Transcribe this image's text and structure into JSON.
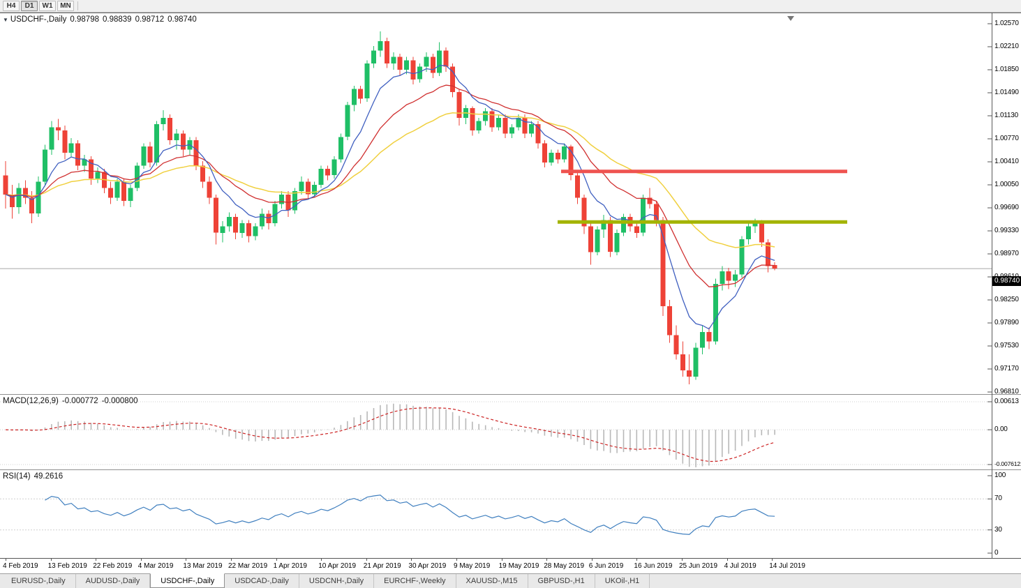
{
  "toolbar": {
    "timeframes": [
      {
        "label": "H4",
        "active": false
      },
      {
        "label": "D1",
        "active": true
      },
      {
        "label": "W1",
        "active": false
      },
      {
        "label": "MN",
        "active": false
      }
    ]
  },
  "chart": {
    "title": {
      "symbol": "USDCHF-,Daily",
      "open": "0.98798",
      "high": "0.98839",
      "low": "0.98712",
      "close": "0.98740"
    },
    "current_price_label": "0.98740",
    "price_scale_labels": [
      "1.02570",
      "1.02210",
      "1.01850",
      "1.01490",
      "1.01130",
      "1.00770",
      "1.00410",
      "1.00050",
      "0.99690",
      "0.99330",
      "0.98970",
      "0.98610",
      "0.98250",
      "0.97890",
      "0.97530",
      "0.97170",
      "0.96810"
    ],
    "date_labels": [
      "4 Feb 2019",
      "13 Feb 2019",
      "22 Feb 2019",
      "4 Mar 2019",
      "13 Mar 2019",
      "22 Mar 2019",
      "1 Apr 2019",
      "10 Apr 2019",
      "21 Apr 2019",
      "30 Apr 2019",
      "9 May 2019",
      "19 May 2019",
      "28 May 2019",
      "6 Jun 2019",
      "16 Jun 2019",
      "25 Jun 2019",
      "4 Jul 2019",
      "14 Jul 2019"
    ],
    "colors": {
      "up": "#1fbf66",
      "down": "#ee4237",
      "ma_fast": "#4060c0",
      "ma_mid": "#d03030",
      "ma_slow": "#f0d040",
      "rsi_line": "#3f7fbf",
      "macd_hist": "#b8b8b8",
      "macd_signal": "#cc2222",
      "hline_red": "#ef5350",
      "hline_olive": "#a3b400",
      "bid_line": "#a8a8a8",
      "grid_dotted": "#cfcfcf"
    }
  },
  "macd": {
    "label": "MACD(12,26,9)",
    "value1": "-0.000772",
    "value2": "-0.000800",
    "scale": [
      "0.00613",
      "0.00",
      "-0.0076121"
    ]
  },
  "rsi": {
    "label": "RSI(14)",
    "value": "49.2616",
    "scale": [
      "100",
      "70",
      "30",
      "0"
    ]
  },
  "tabs": [
    {
      "label": "EURUSD-,Daily",
      "active": false
    },
    {
      "label": "AUDUSD-,Daily",
      "active": false
    },
    {
      "label": "USDCHF-,Daily",
      "active": true
    },
    {
      "label": "USDCAD-,Daily",
      "active": false
    },
    {
      "label": "USDCNH-,Daily",
      "active": false
    },
    {
      "label": "EURCHF-,Weekly",
      "active": false
    },
    {
      "label": "XAUUSD-,M15",
      "active": false
    },
    {
      "label": "GBPUSD-,H1",
      "active": false
    },
    {
      "label": "UKOil-,H1",
      "active": false
    }
  ],
  "chart_data": {
    "type": "candlestick",
    "symbol": "USDCHF",
    "timeframe": "Daily",
    "price_axis": {
      "max": 1.0257,
      "min": 0.9681,
      "step": 0.0036
    },
    "x_range": [
      "4 Feb 2019",
      "17 Jul 2019"
    ],
    "ohlc": [
      [
        1.002,
        1.0042,
        0.9968,
        0.999
      ],
      [
        0.999,
        1.0005,
        0.9952,
        0.997
      ],
      [
        0.997,
        1.0008,
        0.996,
        1.0
      ],
      [
        1.0,
        1.0012,
        0.9975,
        0.9985
      ],
      [
        0.9985,
        0.9995,
        0.9945,
        0.996
      ],
      [
        0.996,
        1.0018,
        0.9955,
        1.001
      ],
      [
        1.001,
        1.0068,
        1.0005,
        1.006
      ],
      [
        1.006,
        1.0105,
        1.0052,
        1.0095
      ],
      [
        1.0095,
        1.0108,
        1.0075,
        1.009
      ],
      [
        1.009,
        1.0098,
        1.0045,
        1.0055
      ],
      [
        1.0055,
        1.0078,
        1.0048,
        1.007
      ],
      [
        1.007,
        1.0075,
        1.0028,
        1.0035
      ],
      [
        1.0035,
        1.0052,
        1.0025,
        1.0045
      ],
      [
        1.0045,
        1.005,
        1.0005,
        1.0015
      ],
      [
        1.0015,
        1.0032,
        1.0008,
        1.0025
      ],
      [
        1.0025,
        1.003,
        0.9992,
        1.0
      ],
      [
        1.0,
        1.001,
        0.9975,
        0.9985
      ],
      [
        0.9985,
        1.0015,
        0.998,
        1.001
      ],
      [
        1.001,
        1.0015,
        0.9972,
        0.998
      ],
      [
        0.998,
        1.0005,
        0.997,
        1.0
      ],
      [
        1.0,
        1.004,
        0.9995,
        1.0035
      ],
      [
        1.0035,
        1.007,
        1.003,
        1.0065
      ],
      [
        1.0065,
        1.0072,
        1.0032,
        1.004
      ],
      [
        1.004,
        1.0105,
        1.0035,
        1.01
      ],
      [
        1.01,
        1.0122,
        1.009,
        1.011
      ],
      [
        1.011,
        1.0115,
        1.0068,
        1.0075
      ],
      [
        1.0075,
        1.0092,
        1.006,
        1.0085
      ],
      [
        1.0085,
        1.009,
        1.005,
        1.006
      ],
      [
        1.006,
        1.008,
        1.0052,
        1.0075
      ],
      [
        1.0075,
        1.008,
        1.0028,
        1.0035
      ],
      [
        1.0035,
        1.0042,
        1.0,
        1.001
      ],
      [
        1.001,
        1.0018,
        0.9975,
        0.9985
      ],
      [
        0.9985,
        0.999,
        0.9912,
        0.993
      ],
      [
        0.993,
        0.9948,
        0.9915,
        0.994
      ],
      [
        0.994,
        0.9962,
        0.9932,
        0.9955
      ],
      [
        0.9955,
        0.996,
        0.992,
        0.993
      ],
      [
        0.993,
        0.995,
        0.9922,
        0.9945
      ],
      [
        0.9945,
        0.995,
        0.9915,
        0.9925
      ],
      [
        0.9925,
        0.9945,
        0.9918,
        0.994
      ],
      [
        0.994,
        0.9968,
        0.9935,
        0.996
      ],
      [
        0.996,
        0.9965,
        0.9935,
        0.9945
      ],
      [
        0.9945,
        0.998,
        0.994,
        0.9975
      ],
      [
        0.9975,
        0.9995,
        0.9968,
        0.999
      ],
      [
        0.999,
        0.9995,
        0.9955,
        0.9965
      ],
      [
        0.9965,
        1.0,
        0.996,
        0.9995
      ],
      [
        0.9995,
        1.0018,
        0.999,
        1.001
      ],
      [
        1.001,
        1.0015,
        0.9982,
        0.999
      ],
      [
        0.999,
        1.001,
        0.9985,
        1.0005
      ],
      [
        1.0005,
        1.0035,
        1.0,
        1.003
      ],
      [
        1.003,
        1.0035,
        1.0012,
        1.002
      ],
      [
        1.002,
        1.005,
        1.0015,
        1.0045
      ],
      [
        1.0045,
        1.0085,
        1.004,
        1.008
      ],
      [
        1.008,
        1.0135,
        1.0075,
        1.013
      ],
      [
        1.013,
        1.016,
        1.012,
        1.0155
      ],
      [
        1.0155,
        1.016,
        1.0132,
        1.014
      ],
      [
        1.014,
        1.02,
        1.0135,
        1.0195
      ],
      [
        1.0195,
        1.0222,
        1.0188,
        1.0215
      ],
      [
        1.0215,
        1.0245,
        1.0205,
        1.023
      ],
      [
        1.023,
        1.0235,
        1.0188,
        1.0195
      ],
      [
        1.0195,
        1.0212,
        1.0185,
        1.0205
      ],
      [
        1.0205,
        1.021,
        1.0175,
        1.0185
      ],
      [
        1.0185,
        1.0205,
        1.0178,
        1.02
      ],
      [
        1.02,
        1.0205,
        1.0162,
        1.017
      ],
      [
        1.017,
        1.0195,
        1.0165,
        1.019
      ],
      [
        1.019,
        1.0212,
        1.0182,
        1.0205
      ],
      [
        1.0205,
        1.021,
        1.0172,
        1.018
      ],
      [
        1.018,
        1.0228,
        1.0175,
        1.0215
      ],
      [
        1.0215,
        1.022,
        1.0182,
        1.019
      ],
      [
        1.019,
        1.0195,
        1.0142,
        1.015
      ],
      [
        1.015,
        1.0155,
        1.0098,
        1.011
      ],
      [
        1.011,
        1.013,
        1.01,
        1.0125
      ],
      [
        1.0125,
        1.0128,
        1.0082,
        1.009
      ],
      [
        1.009,
        1.011,
        1.0085,
        1.0105
      ],
      [
        1.0105,
        1.0125,
        1.0098,
        1.012
      ],
      [
        1.012,
        1.0125,
        1.0088,
        1.0095
      ],
      [
        1.0095,
        1.0115,
        1.009,
        1.011
      ],
      [
        1.011,
        1.0115,
        1.0078,
        1.0085
      ],
      [
        1.0085,
        1.01,
        1.0078,
        1.0095
      ],
      [
        1.0095,
        1.0115,
        1.009,
        1.011
      ],
      [
        1.011,
        1.0115,
        1.0078,
        1.0085
      ],
      [
        1.0085,
        1.0105,
        1.008,
        1.01
      ],
      [
        1.01,
        1.0105,
        1.0062,
        1.007
      ],
      [
        1.007,
        1.0075,
        1.0032,
        1.004
      ],
      [
        1.004,
        1.006,
        1.0035,
        1.0055
      ],
      [
        1.0055,
        1.006,
        1.0038,
        1.0045
      ],
      [
        1.0045,
        1.007,
        1.004,
        1.0065
      ],
      [
        1.0065,
        1.0068,
        1.0012,
        1.002
      ],
      [
        1.002,
        1.0025,
        0.9975,
        0.9985
      ],
      [
        0.9985,
        0.999,
        0.9928,
        0.994
      ],
      [
        0.994,
        0.9945,
        0.988,
        0.99
      ],
      [
        0.99,
        0.994,
        0.9895,
        0.9935
      ],
      [
        0.9935,
        0.9958,
        0.9922,
        0.995
      ],
      [
        0.995,
        0.9955,
        0.9892,
        0.99
      ],
      [
        0.99,
        0.9935,
        0.9895,
        0.993
      ],
      [
        0.993,
        0.996,
        0.9925,
        0.9955
      ],
      [
        0.9955,
        0.996,
        0.9932,
        0.994
      ],
      [
        0.994,
        0.9948,
        0.9922,
        0.993
      ],
      [
        0.993,
        0.999,
        0.9925,
        0.9985
      ],
      [
        0.9985,
        1.0,
        0.9968,
        0.9975
      ],
      [
        0.9975,
        0.998,
        0.994,
        0.995
      ],
      [
        0.995,
        0.9955,
        0.98,
        0.9815
      ],
      [
        0.9815,
        0.9825,
        0.9758,
        0.977
      ],
      [
        0.977,
        0.9785,
        0.9732,
        0.974
      ],
      [
        0.974,
        0.976,
        0.9705,
        0.9715
      ],
      [
        0.9715,
        0.974,
        0.9693,
        0.9705
      ],
      [
        0.9705,
        0.9758,
        0.97,
        0.975
      ],
      [
        0.975,
        0.9785,
        0.974,
        0.9775
      ],
      [
        0.9775,
        0.9782,
        0.9748,
        0.976
      ],
      [
        0.976,
        0.9858,
        0.9755,
        0.985
      ],
      [
        0.985,
        0.9878,
        0.984,
        0.987
      ],
      [
        0.987,
        0.9875,
        0.9842,
        0.9855
      ],
      [
        0.9855,
        0.9872,
        0.9845,
        0.9865
      ],
      [
        0.9865,
        0.9925,
        0.986,
        0.992
      ],
      [
        0.992,
        0.9945,
        0.9912,
        0.994
      ],
      [
        0.994,
        0.9952,
        0.993,
        0.9948
      ],
      [
        0.9948,
        0.995,
        0.9908,
        0.9915
      ],
      [
        0.9915,
        0.992,
        0.9868,
        0.9878
      ],
      [
        0.98798,
        0.98839,
        0.98712,
        0.9874
      ]
    ],
    "overlays": {
      "ema_fast_period": 8,
      "ema_mid_period": 18,
      "ema_slow_period": 35
    },
    "hlines": [
      {
        "price": 1.0026,
        "color": "#ef5350",
        "from_bar": 84.5,
        "to_bar": 128,
        "width": 5
      },
      {
        "price": 0.9947,
        "color": "#a3b400",
        "from_bar": 84,
        "to_bar": 128,
        "width": 5
      }
    ],
    "current_price": 0.9874,
    "indicators": [
      {
        "type": "macd",
        "params": [
          12,
          26,
          9
        ],
        "values": [
          -0.000772,
          -0.0008
        ],
        "scale_max": 0.00613,
        "scale_min": -0.0076121
      },
      {
        "type": "rsi",
        "params": [
          14
        ],
        "value": 49.2616,
        "levels": [
          70,
          30
        ],
        "scale": [
          0,
          100
        ]
      }
    ]
  }
}
